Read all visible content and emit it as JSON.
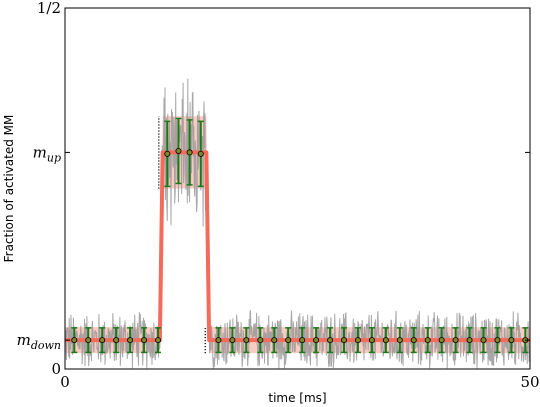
{
  "chart_data": {
    "type": "line",
    "title": "",
    "xlabel": "time [ms]",
    "ylabel": "Fraction of activated MM",
    "xlim": [
      0,
      50
    ],
    "ylim": [
      0,
      0.5
    ],
    "x_ticks": [
      {
        "value": 0,
        "label": "0"
      },
      {
        "value": 50,
        "label": "50"
      }
    ],
    "y_ticks": [
      {
        "value": 0,
        "label": "0"
      },
      {
        "value": 0.04,
        "label": "m_down",
        "base": "m",
        "sub": "down"
      },
      {
        "value": 0.3,
        "label": "m_up",
        "base": "m",
        "sub": "up"
      },
      {
        "value": 0.5,
        "label": "1/2"
      }
    ],
    "grid": false,
    "legend": "none",
    "series": [
      {
        "role": "mean-fit",
        "color": "#f26b5b",
        "x": [
          0,
          10.2,
          10.5,
          15.2,
          15.5,
          50
        ],
        "y": [
          0.04,
          0.04,
          0.3,
          0.3,
          0.04,
          0.04
        ]
      },
      {
        "role": "noisy-trace",
        "color": "#999999",
        "x": [
          0,
          50
        ],
        "y": [
          0.04,
          0.04
        ],
        "down_spread": 0.045,
        "up_spread": 0.11,
        "peak_excursion": 0.43
      },
      {
        "role": "binned-points",
        "color": "#1a7a1a",
        "x": [
          1,
          2.5,
          4,
          5.5,
          7,
          8.5,
          10,
          11,
          12.2,
          13.4,
          14.6,
          16.5,
          18,
          19.5,
          21,
          22.5,
          24,
          25.5,
          27,
          28.5,
          30,
          31.5,
          33,
          34.5,
          36,
          37.5,
          39,
          40.5,
          42,
          43.5,
          45,
          46.5,
          48,
          49.5
        ],
        "y": [
          0.04,
          0.04,
          0.04,
          0.04,
          0.04,
          0.04,
          0.04,
          0.298,
          0.302,
          0.3,
          0.298,
          0.04,
          0.04,
          0.04,
          0.04,
          0.04,
          0.04,
          0.04,
          0.04,
          0.04,
          0.04,
          0.04,
          0.04,
          0.04,
          0.04,
          0.04,
          0.04,
          0.04,
          0.04,
          0.04,
          0.04,
          0.04,
          0.04,
          0.04
        ],
        "err": [
          0.017,
          0.017,
          0.017,
          0.017,
          0.017,
          0.017,
          0.017,
          0.045,
          0.045,
          0.045,
          0.045,
          0.017,
          0.017,
          0.017,
          0.017,
          0.017,
          0.017,
          0.017,
          0.017,
          0.017,
          0.017,
          0.017,
          0.017,
          0.017,
          0.017,
          0.017,
          0.017,
          0.017,
          0.017,
          0.017,
          0.017,
          0.017,
          0.017,
          0.017
        ]
      },
      {
        "role": "confidence-band",
        "color": "#f7b5a8",
        "x": [
          0,
          10.2,
          10.5,
          15.2,
          15.5,
          50
        ],
        "lower": [
          0.022,
          0.022,
          0.25,
          0.25,
          0.022,
          0.022
        ],
        "upper": [
          0.058,
          0.058,
          0.35,
          0.35,
          0.058,
          0.058
        ]
      }
    ]
  }
}
